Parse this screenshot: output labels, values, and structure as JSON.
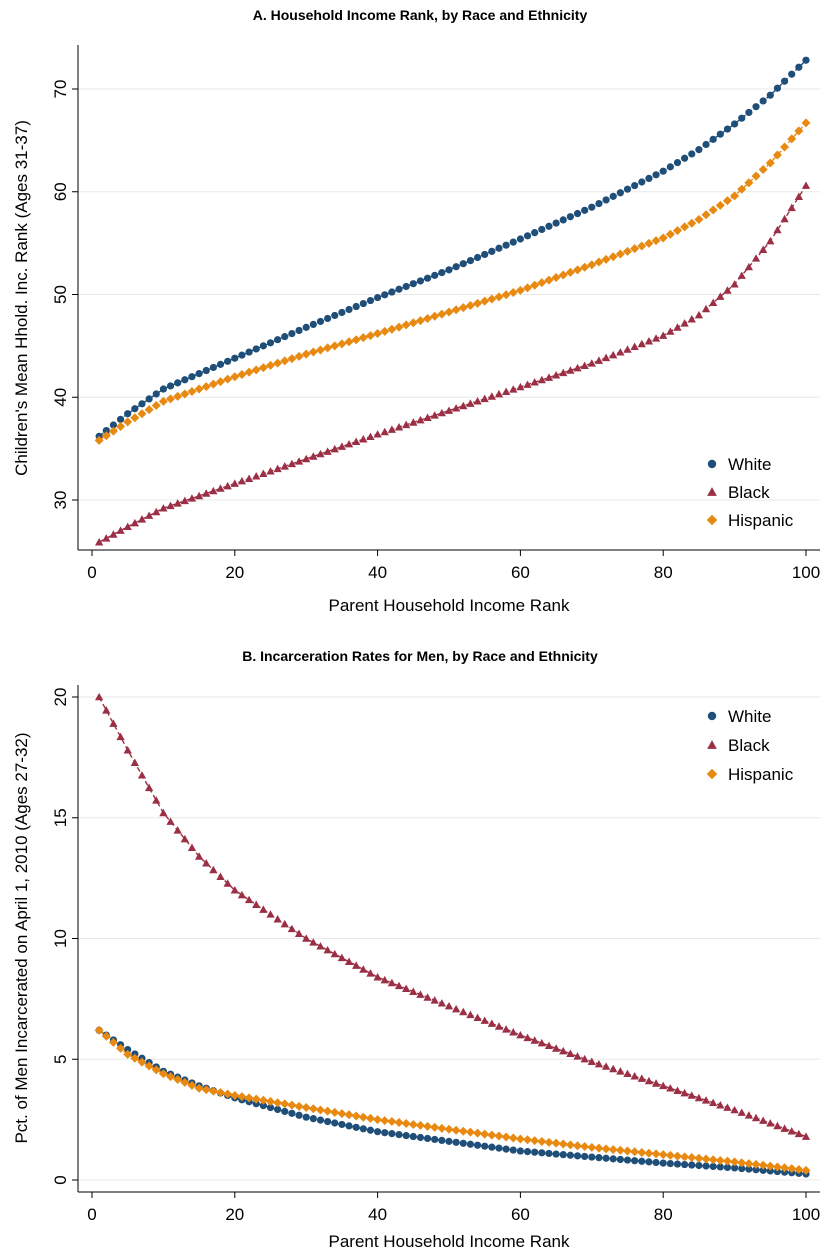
{
  "chart_data": [
    {
      "type": "scatter",
      "title": "A. Household Income Rank, by Race and Ethnicity",
      "xlabel": "Parent Household Income Rank",
      "ylabel": "Children's Mean Hhold. Inc. Rank (Ages 31-37)",
      "xlim": [
        0,
        100
      ],
      "ylim": [
        24,
        74
      ],
      "xticks": [
        0,
        20,
        40,
        60,
        80,
        100
      ],
      "yticks": [
        30,
        40,
        50,
        60,
        70
      ],
      "grid": true,
      "legend_position": "bottom-right",
      "series": [
        {
          "name": "White",
          "marker": "circle",
          "color": "#1f4e79",
          "knots": [
            [
              1,
              36.2
            ],
            [
              5,
              38.4
            ],
            [
              10,
              40.8
            ],
            [
              20,
              43.8
            ],
            [
              30,
              46.8
            ],
            [
              40,
              49.7
            ],
            [
              50,
              52.4
            ],
            [
              60,
              55.4
            ],
            [
              70,
              58.5
            ],
            [
              80,
              62.0
            ],
            [
              85,
              64.1
            ],
            [
              90,
              66.6
            ],
            [
              95,
              69.4
            ],
            [
              100,
              72.8
            ]
          ]
        },
        {
          "name": "Black",
          "marker": "triangle",
          "color": "#9b2f45",
          "knots": [
            [
              1,
              25.9
            ],
            [
              5,
              27.4
            ],
            [
              10,
              29.2
            ],
            [
              20,
              31.6
            ],
            [
              30,
              34.0
            ],
            [
              40,
              36.4
            ],
            [
              50,
              38.7
            ],
            [
              60,
              41.0
            ],
            [
              70,
              43.3
            ],
            [
              80,
              46.0
            ],
            [
              85,
              48.0
            ],
            [
              90,
              51.0
            ],
            [
              95,
              55.2
            ],
            [
              100,
              60.6
            ]
          ]
        },
        {
          "name": "Hispanic",
          "marker": "diamond",
          "color": "#e88a12",
          "knots": [
            [
              1,
              35.8
            ],
            [
              5,
              37.6
            ],
            [
              10,
              39.6
            ],
            [
              20,
              42.0
            ],
            [
              30,
              44.2
            ],
            [
              40,
              46.2
            ],
            [
              50,
              48.3
            ],
            [
              60,
              50.4
            ],
            [
              70,
              52.9
            ],
            [
              80,
              55.5
            ],
            [
              85,
              57.3
            ],
            [
              90,
              59.6
            ],
            [
              95,
              62.8
            ],
            [
              100,
              66.7
            ]
          ]
        }
      ]
    },
    {
      "type": "scatter",
      "title": "B. Incarceration Rates for Men, by Race and Ethnicity",
      "xlabel": "Parent Household Income Rank",
      "ylabel": "Pct. of Men Incarcerated on April 1, 2010 (Ages 27-32)",
      "xlim": [
        0,
        100
      ],
      "ylim": [
        -0.5,
        20.5
      ],
      "xticks": [
        0,
        20,
        40,
        60,
        80,
        100
      ],
      "yticks": [
        0,
        5,
        10,
        15,
        20
      ],
      "grid": true,
      "legend_position": "top-right",
      "series": [
        {
          "name": "White",
          "marker": "circle",
          "color": "#1f4e79",
          "knots": [
            [
              1,
              6.2
            ],
            [
              5,
              5.4
            ],
            [
              10,
              4.5
            ],
            [
              15,
              3.9
            ],
            [
              20,
              3.4
            ],
            [
              30,
              2.6
            ],
            [
              40,
              2.0
            ],
            [
              50,
              1.6
            ],
            [
              60,
              1.2
            ],
            [
              70,
              0.95
            ],
            [
              80,
              0.7
            ],
            [
              90,
              0.5
            ],
            [
              100,
              0.25
            ]
          ]
        },
        {
          "name": "Black",
          "marker": "triangle",
          "color": "#9b2f45",
          "knots": [
            [
              1,
              20.0
            ],
            [
              5,
              17.8
            ],
            [
              10,
              15.2
            ],
            [
              15,
              13.4
            ],
            [
              20,
              12.0
            ],
            [
              30,
              10.0
            ],
            [
              40,
              8.4
            ],
            [
              50,
              7.2
            ],
            [
              60,
              6.0
            ],
            [
              70,
              4.9
            ],
            [
              80,
              3.9
            ],
            [
              90,
              2.9
            ],
            [
              100,
              1.8
            ]
          ]
        },
        {
          "name": "Hispanic",
          "marker": "diamond",
          "color": "#e88a12",
          "knots": [
            [
              1,
              6.2
            ],
            [
              5,
              5.2
            ],
            [
              10,
              4.4
            ],
            [
              15,
              3.8
            ],
            [
              20,
              3.5
            ],
            [
              30,
              3.0
            ],
            [
              40,
              2.5
            ],
            [
              50,
              2.1
            ],
            [
              60,
              1.7
            ],
            [
              70,
              1.35
            ],
            [
              80,
              1.05
            ],
            [
              90,
              0.75
            ],
            [
              100,
              0.4
            ]
          ]
        }
      ]
    }
  ]
}
